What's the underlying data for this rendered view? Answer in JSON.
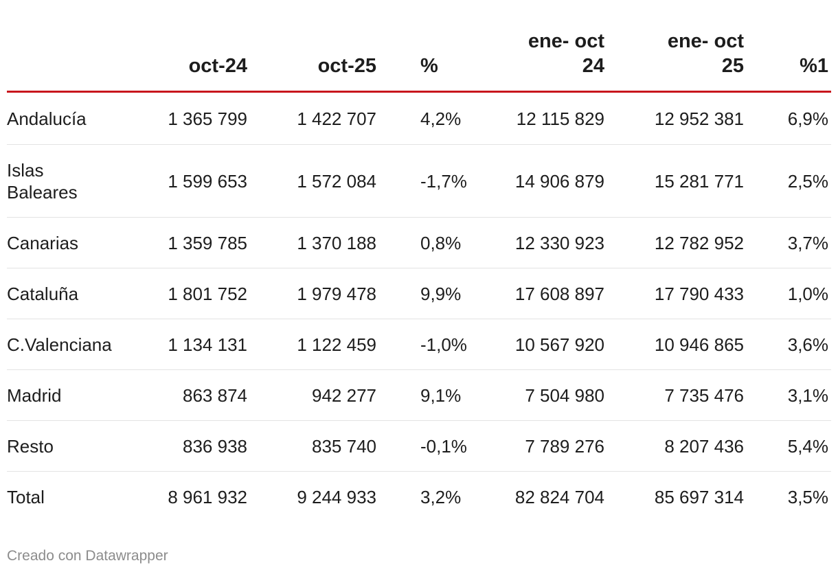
{
  "chart_data": {
    "type": "table",
    "columns": [
      {
        "key": "region",
        "label": ""
      },
      {
        "key": "oct24",
        "label_lines": [
          "oct-24"
        ]
      },
      {
        "key": "oct25",
        "label_lines": [
          "oct-25"
        ]
      },
      {
        "key": "pct",
        "label_lines": [
          "%"
        ]
      },
      {
        "key": "eneoct24",
        "label_lines": [
          "ene- oct",
          "24"
        ]
      },
      {
        "key": "eneoct25",
        "label_lines": [
          "ene- oct",
          "25"
        ]
      },
      {
        "key": "pct1",
        "label_lines": [
          "%1"
        ]
      }
    ],
    "rows": [
      {
        "region": "Andalucía",
        "oct24": "1 365 799",
        "oct25": "1 422 707",
        "pct": "4,2%",
        "eneoct24": "12 115 829",
        "eneoct25": "12 952 381",
        "pct1": "6,9%"
      },
      {
        "region": "Islas Baleares",
        "oct24": "1 599 653",
        "oct25": "1 572 084",
        "pct": "-1,7%",
        "eneoct24": "14 906 879",
        "eneoct25": "15 281 771",
        "pct1": "2,5%"
      },
      {
        "region": "Canarias",
        "oct24": "1 359 785",
        "oct25": "1 370 188",
        "pct": "0,8%",
        "eneoct24": "12 330 923",
        "eneoct25": "12 782 952",
        "pct1": "3,7%"
      },
      {
        "region": "Cataluña",
        "oct24": "1 801 752",
        "oct25": "1 979 478",
        "pct": "9,9%",
        "eneoct24": "17 608 897",
        "eneoct25": "17 790 433",
        "pct1": "1,0%"
      },
      {
        "region": "C.Valenciana",
        "oct24": "1 134 131",
        "oct25": "1 122 459",
        "pct": "-1,0%",
        "eneoct24": "10 567 920",
        "eneoct25": "10 946 865",
        "pct1": "3,6%"
      },
      {
        "region": "Madrid",
        "oct24": "863 874",
        "oct25": "942 277",
        "pct": "9,1%",
        "eneoct24": "7 504 980",
        "eneoct25": "7 735 476",
        "pct1": "3,1%"
      },
      {
        "region": "Resto",
        "oct24": "836 938",
        "oct25": "835 740",
        "pct": "-0,1%",
        "eneoct24": "7 789 276",
        "eneoct25": "8 207 436",
        "pct1": "5,4%"
      },
      {
        "region": "Total",
        "oct24": "8 961 932",
        "oct25": "9 244 933",
        "pct": "3,2%",
        "eneoct24": "82 824 704",
        "eneoct25": "85 697 314",
        "pct1": "3,5%"
      }
    ],
    "header_rule_color": "#c8161d"
  },
  "footer": {
    "credit": "Creado con Datawrapper"
  }
}
